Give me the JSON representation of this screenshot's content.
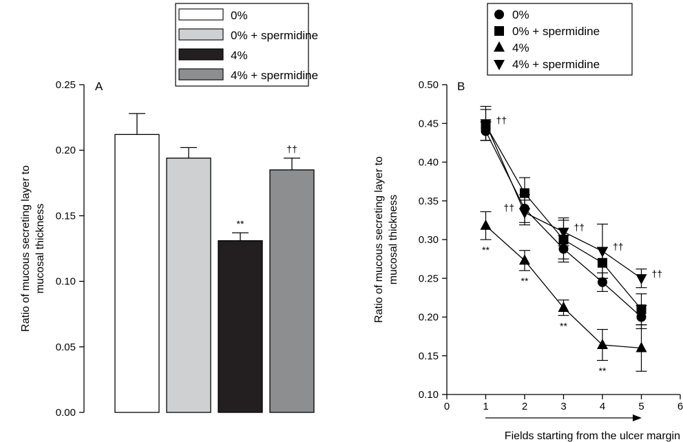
{
  "chart_data": [
    {
      "type": "bar",
      "panel_label": "A",
      "ylabel": "Ratio of mucous secreting layer to mucosal thickness",
      "ylim": [
        0,
        0.25
      ],
      "yticks": [
        "0.00",
        "0.05",
        "0.10",
        "0.15",
        "0.20",
        "0.25"
      ],
      "grid": false,
      "legend_position": "top",
      "bars": [
        {
          "name": "0%",
          "value": 0.212,
          "error": 0.016,
          "color": "#ffffff",
          "annotation": ""
        },
        {
          "name": "0% + spermidine",
          "value": 0.194,
          "error": 0.008,
          "color": "#cfd0d2",
          "annotation": ""
        },
        {
          "name": "4%",
          "value": 0.131,
          "error": 0.006,
          "color": "#231f20",
          "annotation": "**"
        },
        {
          "name": "4% + spermidine",
          "value": 0.185,
          "error": 0.009,
          "color": "#8d8e90",
          "annotation": "††"
        }
      ]
    },
    {
      "type": "line",
      "panel_label": "B",
      "xlabel": "Fields starting from the ulcer margin",
      "ylabel": "Ratio of mucous secreting layer to mucosal thickness",
      "xlim": [
        0,
        6
      ],
      "ylim": [
        0.1,
        0.5
      ],
      "xticks": [
        "0",
        "1",
        "2",
        "3",
        "4",
        "5",
        "6"
      ],
      "yticks": [
        "0.10",
        "0.15",
        "0.20",
        "0.25",
        "0.30",
        "0.35",
        "0.40",
        "0.45",
        "0.50"
      ],
      "grid": false,
      "legend_position": "top",
      "x": [
        1,
        2,
        3,
        4,
        5
      ],
      "series": [
        {
          "name": "0%",
          "marker": "circle",
          "values": [
            0.44,
            0.34,
            0.288,
            0.245,
            0.2
          ],
          "errors": [
            0.012,
            0.018,
            0.017,
            0.012,
            0.015
          ]
        },
        {
          "name": "0% + spermidine",
          "marker": "square",
          "values": [
            0.448,
            0.36,
            0.3,
            0.27,
            0.21
          ],
          "errors": [
            0.02,
            0.02,
            0.025,
            0.02,
            0.02
          ]
        },
        {
          "name": "4%",
          "marker": "triangle-up",
          "values": [
            0.318,
            0.273,
            0.212,
            0.164,
            0.16
          ],
          "errors": [
            0.018,
            0.013,
            0.01,
            0.02,
            0.03
          ]
        },
        {
          "name": "4% + spermidine",
          "marker": "triangle-down",
          "values": [
            0.45,
            0.335,
            0.31,
            0.285,
            0.25
          ],
          "errors": [
            0.022,
            0.016,
            0.018,
            0.035,
            0.012
          ]
        }
      ],
      "annotations": [
        {
          "text": "††",
          "x": 1,
          "anchor_series": "0% + spermidine",
          "side": "right"
        },
        {
          "text": "††",
          "x": 2,
          "anchor_series": "4% + spermidine",
          "side": "left"
        },
        {
          "text": "††",
          "x": 3,
          "anchor_series": "4% + spermidine",
          "side": "right"
        },
        {
          "text": "††",
          "x": 4,
          "anchor_series": "4% + spermidine",
          "side": "right"
        },
        {
          "text": "††",
          "x": 5,
          "anchor_series": "4% + spermidine",
          "side": "right"
        },
        {
          "text": "**",
          "x": 1,
          "anchor_series": "4%",
          "side": "below"
        },
        {
          "text": "**",
          "x": 2,
          "anchor_series": "4%",
          "side": "below"
        },
        {
          "text": "**",
          "x": 3,
          "anchor_series": "4%",
          "side": "below"
        },
        {
          "text": "**",
          "x": 4,
          "anchor_series": "4%",
          "side": "below"
        }
      ]
    }
  ]
}
